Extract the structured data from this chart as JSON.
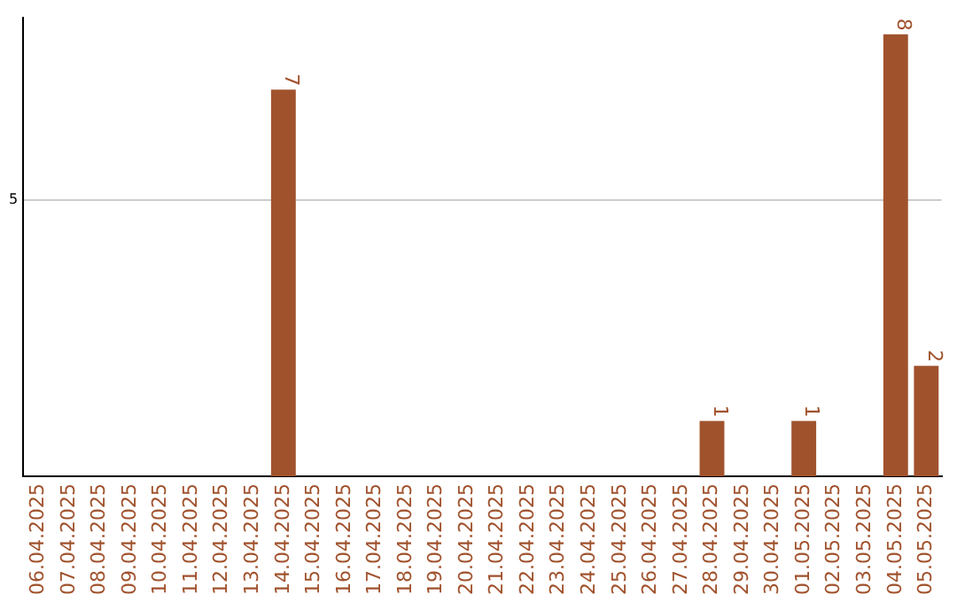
{
  "chart_data": {
    "type": "bar",
    "categories": [
      "06.04.2025",
      "07.04.2025",
      "08.04.2025",
      "09.04.2025",
      "10.04.2025",
      "11.04.2025",
      "12.04.2025",
      "13.04.2025",
      "14.04.2025",
      "15.04.2025",
      "16.04.2025",
      "17.04.2025",
      "18.04.2025",
      "19.04.2025",
      "20.04.2025",
      "21.04.2025",
      "22.04.2025",
      "23.04.2025",
      "24.04.2025",
      "25.04.2025",
      "26.04.2025",
      "27.04.2025",
      "28.04.2025",
      "29.04.2025",
      "30.04.2025",
      "01.05.2025",
      "02.05.2025",
      "03.05.2025",
      "04.05.2025",
      "05.05.2025"
    ],
    "values": [
      0,
      0,
      0,
      0,
      0,
      0,
      0,
      0,
      7,
      0,
      0,
      0,
      0,
      0,
      0,
      0,
      0,
      0,
      0,
      0,
      0,
      0,
      1,
      0,
      0,
      1,
      0,
      0,
      8,
      2
    ],
    "value_labels": [
      null,
      null,
      null,
      null,
      null,
      null,
      null,
      null,
      "7",
      null,
      null,
      null,
      null,
      null,
      null,
      null,
      null,
      null,
      null,
      null,
      null,
      null,
      "1",
      null,
      null,
      "1",
      null,
      null,
      "8",
      "2"
    ],
    "color": "#a0522d",
    "ylim": [
      0,
      8.3
    ],
    "yticks": [
      5
    ],
    "grid": "y",
    "legend": false
  }
}
